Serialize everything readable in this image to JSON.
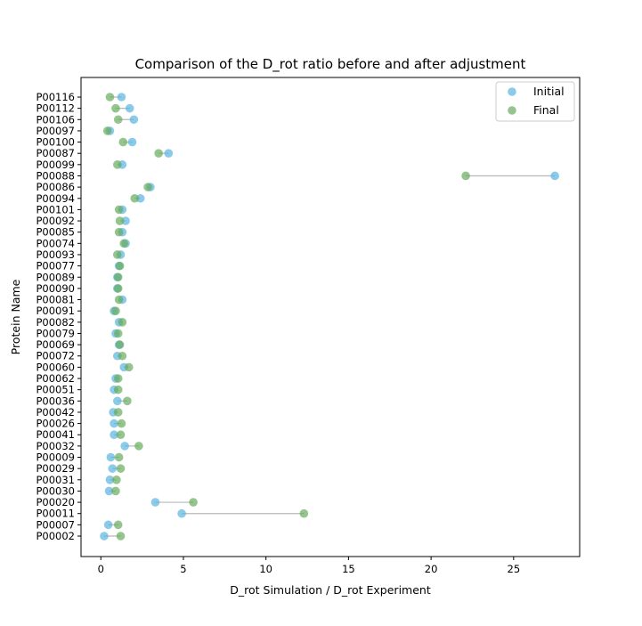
{
  "chart_data": {
    "type": "scatter",
    "title": "Comparison of the D_rot ratio before and after adjustment",
    "xlabel": "D_rot Simulation / D_rot Experiment",
    "ylabel": "Protein Name",
    "xlim": [
      -1.2,
      29
    ],
    "xticks": [
      0,
      5,
      10,
      15,
      20,
      25
    ],
    "legend_position": "top-right",
    "grid": false,
    "categories": [
      "P00002",
      "P00007",
      "P00011",
      "P00020",
      "P00030",
      "P00031",
      "P00029",
      "P00009",
      "P00032",
      "P00041",
      "P00026",
      "P00042",
      "P00036",
      "P00051",
      "P00062",
      "P00060",
      "P00072",
      "P00069",
      "P00079",
      "P00082",
      "P00091",
      "P00081",
      "P00090",
      "P00089",
      "P00077",
      "P00093",
      "P00074",
      "P00085",
      "P00092",
      "P00101",
      "P00094",
      "P00086",
      "P00088",
      "P00099",
      "P00087",
      "P00100",
      "P00097",
      "P00106",
      "P00112",
      "P00116"
    ],
    "series": [
      {
        "name": "Initial",
        "color": "#5ab4e0",
        "values": [
          0.2,
          0.45,
          4.9,
          3.3,
          0.5,
          0.55,
          0.7,
          0.6,
          1.45,
          0.8,
          0.8,
          0.75,
          1.0,
          0.8,
          0.9,
          1.4,
          1.0,
          1.1,
          0.9,
          1.1,
          0.8,
          1.3,
          1.0,
          1.0,
          1.1,
          1.2,
          1.5,
          1.3,
          1.5,
          1.3,
          2.4,
          3.0,
          27.5,
          1.3,
          4.1,
          1.9,
          0.55,
          2.0,
          1.75,
          1.25
        ]
      },
      {
        "name": "Final",
        "color": "#66ad5c",
        "values": [
          1.2,
          1.05,
          12.3,
          5.6,
          0.9,
          0.95,
          1.2,
          1.1,
          2.3,
          1.2,
          1.25,
          1.05,
          1.6,
          1.05,
          1.05,
          1.7,
          1.3,
          1.15,
          1.05,
          1.3,
          0.9,
          1.1,
          1.05,
          1.05,
          1.15,
          1.0,
          1.4,
          1.1,
          1.15,
          1.1,
          2.05,
          2.85,
          22.1,
          1.0,
          3.5,
          1.35,
          0.4,
          1.05,
          0.9,
          0.55
        ]
      }
    ]
  }
}
